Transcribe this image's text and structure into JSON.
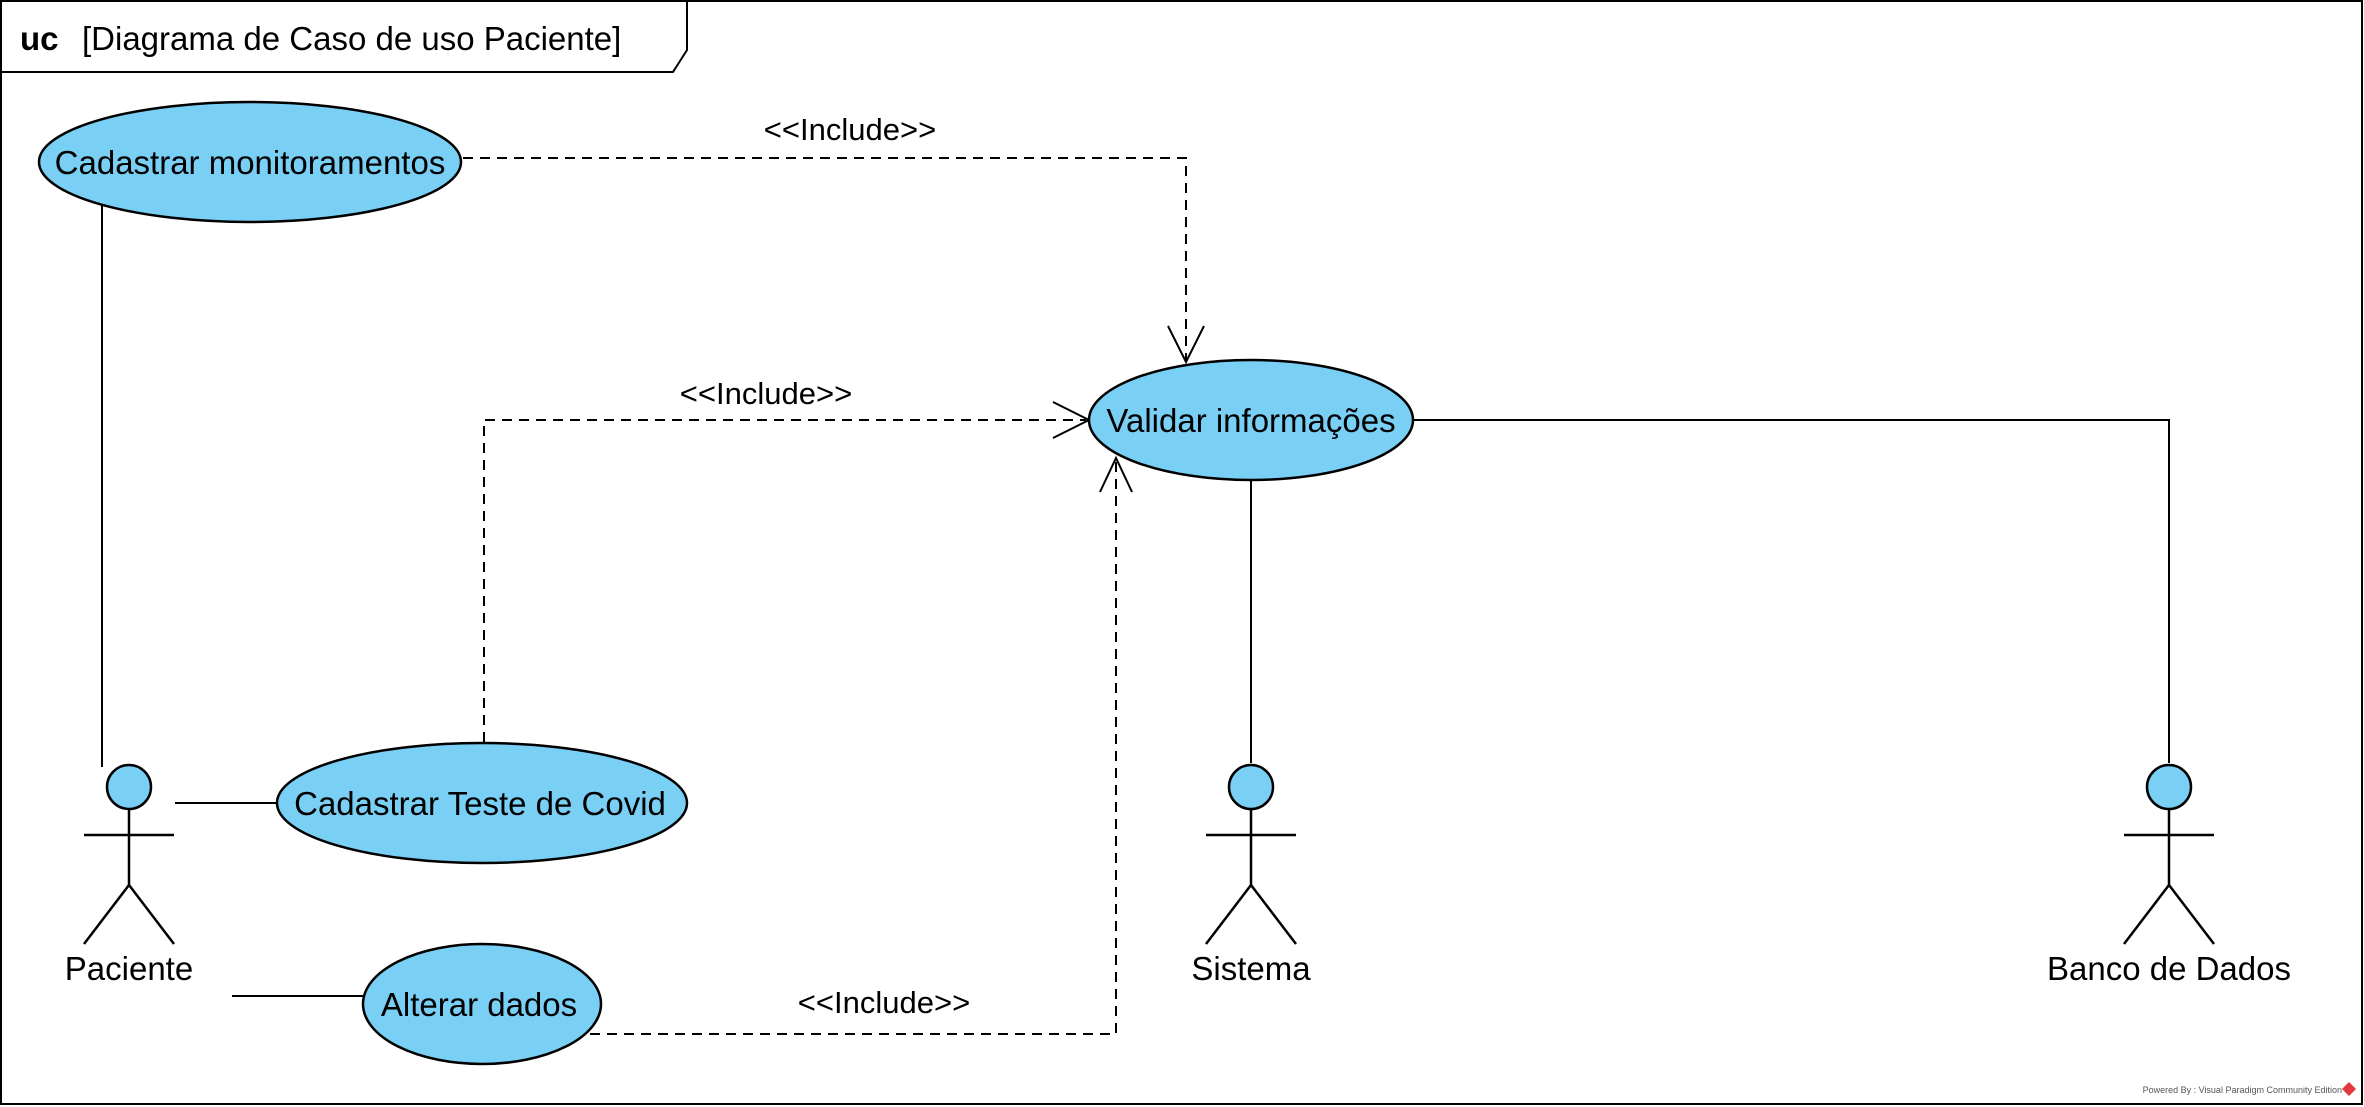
{
  "frame": {
    "keyword": "uc",
    "title": "[Diagrama de Caso de uso Paciente]"
  },
  "use_cases": {
    "cadastrar_monitoramentos": "Cadastrar monitoramentos",
    "validar_informacoes": "Validar informações",
    "cadastrar_teste_covid": "Cadastrar Teste de Covid",
    "alterar_dados": "Alterar dados"
  },
  "actors": {
    "paciente": "Paciente",
    "sistema": "Sistema",
    "banco_de_dados": "Banco de Dados"
  },
  "relations": {
    "include_1": "<<Include>>",
    "include_2": "<<Include>>",
    "include_3": "<<Include>>"
  },
  "footer": "Powered By : Visual Paradigm Community Edition",
  "colors": {
    "use_case_fill": "#7ACFF5",
    "actor_fill": "#7ACFF5",
    "stroke": "#000000",
    "background": "#FFFFFF"
  }
}
